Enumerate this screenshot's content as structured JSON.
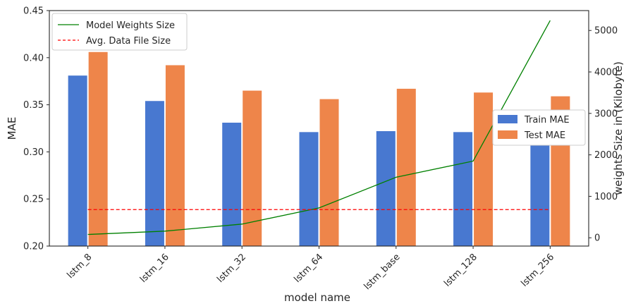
{
  "chart_data": {
    "type": "bar",
    "categories": [
      "lstm_8",
      "lstm_16",
      "lstm_32",
      "lstm_64",
      "lstm_base",
      "lstm_128",
      "lstm_256"
    ],
    "series": [
      {
        "name": "Train MAE",
        "values": [
          0.381,
          0.354,
          0.331,
          0.321,
          0.322,
          0.321,
          0.319
        ],
        "color": "#4878d0"
      },
      {
        "name": "Test MAE",
        "values": [
          0.406,
          0.392,
          0.365,
          0.356,
          0.367,
          0.363,
          0.359
        ],
        "color": "#ee854a"
      }
    ],
    "lines": [
      {
        "name": "Model Weights Size",
        "axis": "right",
        "values": [
          80,
          160,
          330,
          720,
          1460,
          1850,
          5240
        ],
        "color": "#008000",
        "style": "solid"
      },
      {
        "name": "Avg. Data File Size",
        "axis": "right",
        "constant": 680,
        "color": "#ff0000",
        "style": "dashed"
      }
    ],
    "xlabel": "model  name",
    "ylabel": "MAE",
    "y2label": "weights Size in (Kilobyte)",
    "ylim": [
      0.2,
      0.45
    ],
    "y2lim": [
      -200,
      5480
    ],
    "yticks": [
      "0.20",
      "0.25",
      "0.30",
      "0.35",
      "0.40",
      "0.45"
    ],
    "y2ticks": [
      "0",
      "1000",
      "2000",
      "3000",
      "4000",
      "5000"
    ],
    "legend_left": {
      "placement": "upper-left",
      "entries": [
        "Model Weights Size",
        "Avg. Data File Size"
      ]
    },
    "legend_right": {
      "placement": "center-right",
      "entries": [
        "Train MAE",
        "Test MAE"
      ]
    },
    "grid": false
  }
}
